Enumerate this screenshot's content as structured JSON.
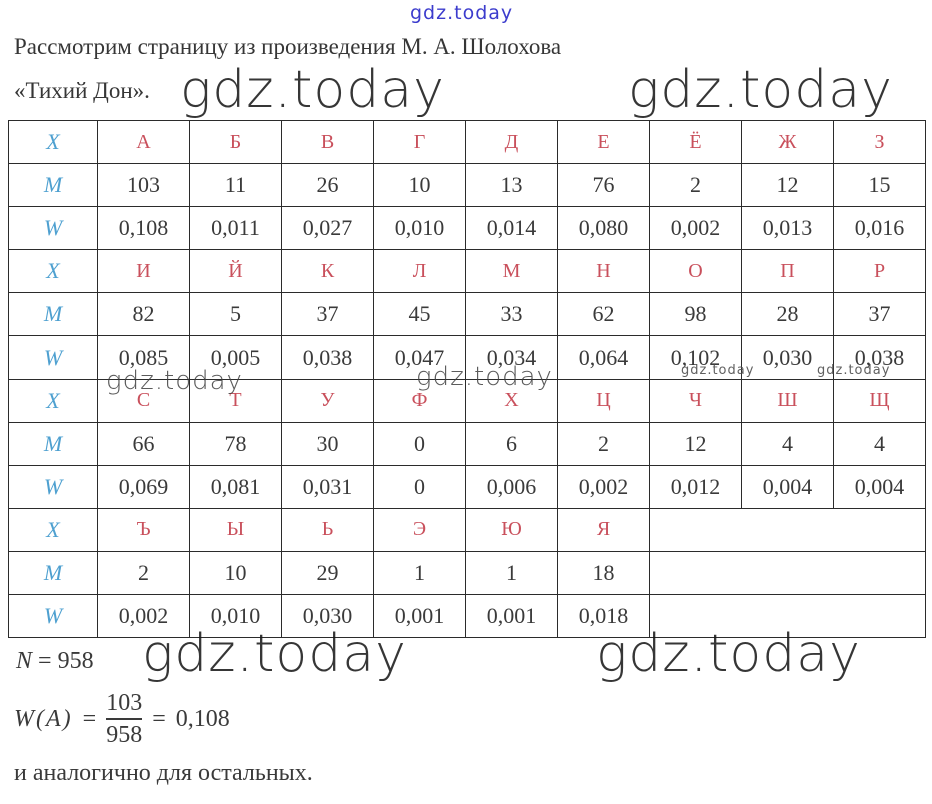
{
  "watermark": {
    "text": "gdz.today"
  },
  "colors": {
    "letter_red": "#c9505c",
    "label_blue": "#4ea0d0",
    "watermark_blue": "#3c3ccd",
    "watermark_dark": "#1b1b1b",
    "text": "#3a3a3a",
    "border": "#2b2b2b"
  },
  "header": {
    "line1": "Рассмотрим страницу из произведения М. А. Шолохова",
    "line2": "«Тихий Дон»."
  },
  "table": {
    "row_labels": {
      "letter": "X",
      "count": "M",
      "frequency": "W"
    },
    "columns_per_block": 9,
    "blocks": [
      {
        "letters": [
          "А",
          "Б",
          "В",
          "Г",
          "Д",
          "Е",
          "Ё",
          "Ж",
          "З"
        ],
        "counts": [
          "103",
          "11",
          "26",
          "10",
          "13",
          "76",
          "2",
          "12",
          "15"
        ],
        "freqs": [
          "0,108",
          "0,011",
          "0,027",
          "0,010",
          "0,014",
          "0,080",
          "0,002",
          "0,013",
          "0,016"
        ]
      },
      {
        "letters": [
          "И",
          "Й",
          "К",
          "Л",
          "М",
          "Н",
          "О",
          "П",
          "Р"
        ],
        "counts": [
          "82",
          "5",
          "37",
          "45",
          "33",
          "62",
          "98",
          "28",
          "37"
        ],
        "freqs": [
          "0,085",
          "0,005",
          "0,038",
          "0,047",
          "0,034",
          "0,064",
          "0,102",
          "0,030",
          "0,038"
        ]
      },
      {
        "letters": [
          "С",
          "Т",
          "У",
          "Ф",
          "Х",
          "Ц",
          "Ч",
          "Ш",
          "Щ"
        ],
        "counts": [
          "66",
          "78",
          "30",
          "0",
          "6",
          "2",
          "12",
          "4",
          "4"
        ],
        "freqs": [
          "0,069",
          "0,081",
          "0,031",
          "0",
          "0,006",
          "0,002",
          "0,012",
          "0,004",
          "0,004"
        ]
      },
      {
        "letters": [
          "Ъ",
          "Ы",
          "Ь",
          "Э",
          "Ю",
          "Я"
        ],
        "counts": [
          "2",
          "10",
          "29",
          "1",
          "1",
          "18"
        ],
        "freqs": [
          "0,002",
          "0,010",
          "0,030",
          "0,001",
          "0,001",
          "0,018"
        ]
      }
    ]
  },
  "formulas": {
    "n": {
      "symbol": "N",
      "eq": "=",
      "value": "958"
    },
    "w": {
      "lhs": "W(A)",
      "eq1": "=",
      "numerator": "103",
      "denominator": "958",
      "eq2": "=",
      "result": "0,108"
    },
    "note": "и аналогично для остальных."
  }
}
